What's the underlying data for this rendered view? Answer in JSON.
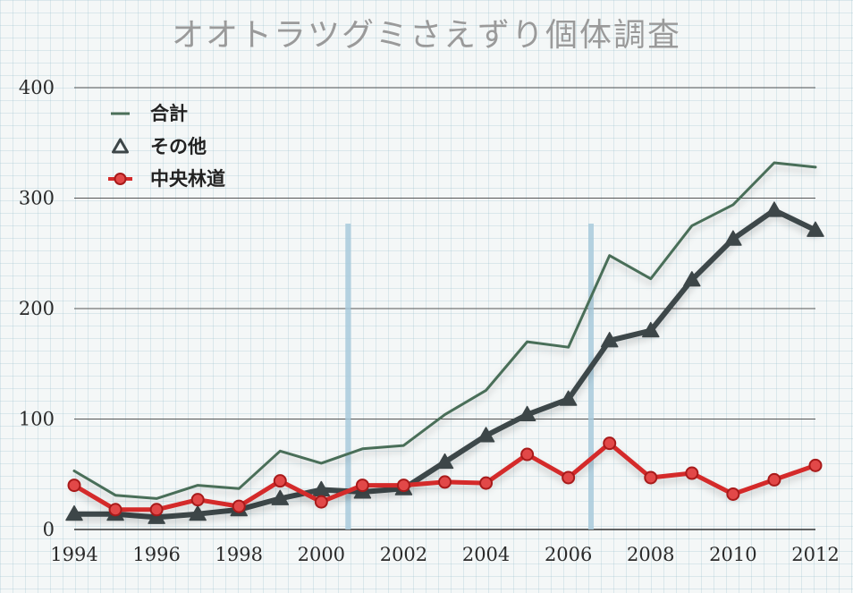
{
  "chart_data": {
    "type": "line",
    "title": "オオトラツグミさえずり個体調査",
    "x": [
      1994,
      1995,
      1996,
      1997,
      1998,
      1999,
      2000,
      2001,
      2002,
      2003,
      2004,
      2005,
      2006,
      2007,
      2008,
      2009,
      2010,
      2011,
      2012
    ],
    "x_ticks": [
      "1994",
      "1996",
      "1998",
      "2000",
      "2002",
      "2004",
      "2006",
      "2008",
      "2010",
      "2012"
    ],
    "y_ticks": [
      "0",
      "100",
      "200",
      "300",
      "400"
    ],
    "xlim": [
      1994,
      2012
    ],
    "ylim": [
      0,
      400
    ],
    "grid": true,
    "legend": "top-left",
    "series": [
      {
        "name": "合計",
        "color": "#4a6e58",
        "marker": "none",
        "values": [
          53,
          31,
          28,
          40,
          37,
          71,
          60,
          73,
          76,
          104,
          126,
          170,
          165,
          248,
          227,
          275,
          294,
          332,
          328
        ]
      },
      {
        "name": "その他",
        "color": "#3d4648",
        "marker": "triangle",
        "values": [
          14,
          14,
          11,
          14,
          18,
          28,
          36,
          34,
          37,
          61,
          85,
          104,
          118,
          171,
          180,
          226,
          263,
          289,
          271
        ]
      },
      {
        "name": "中央林道",
        "color": "#d42a2a",
        "marker": "circle",
        "values": [
          40,
          18,
          18,
          27,
          21,
          44,
          25,
          40,
          40,
          43,
          42,
          68,
          47,
          78,
          47,
          51,
          32,
          45,
          58
        ]
      }
    ],
    "reference_lines_x": [
      2000.65,
      2006.55
    ],
    "reference_line_color": "#a8cadc"
  }
}
